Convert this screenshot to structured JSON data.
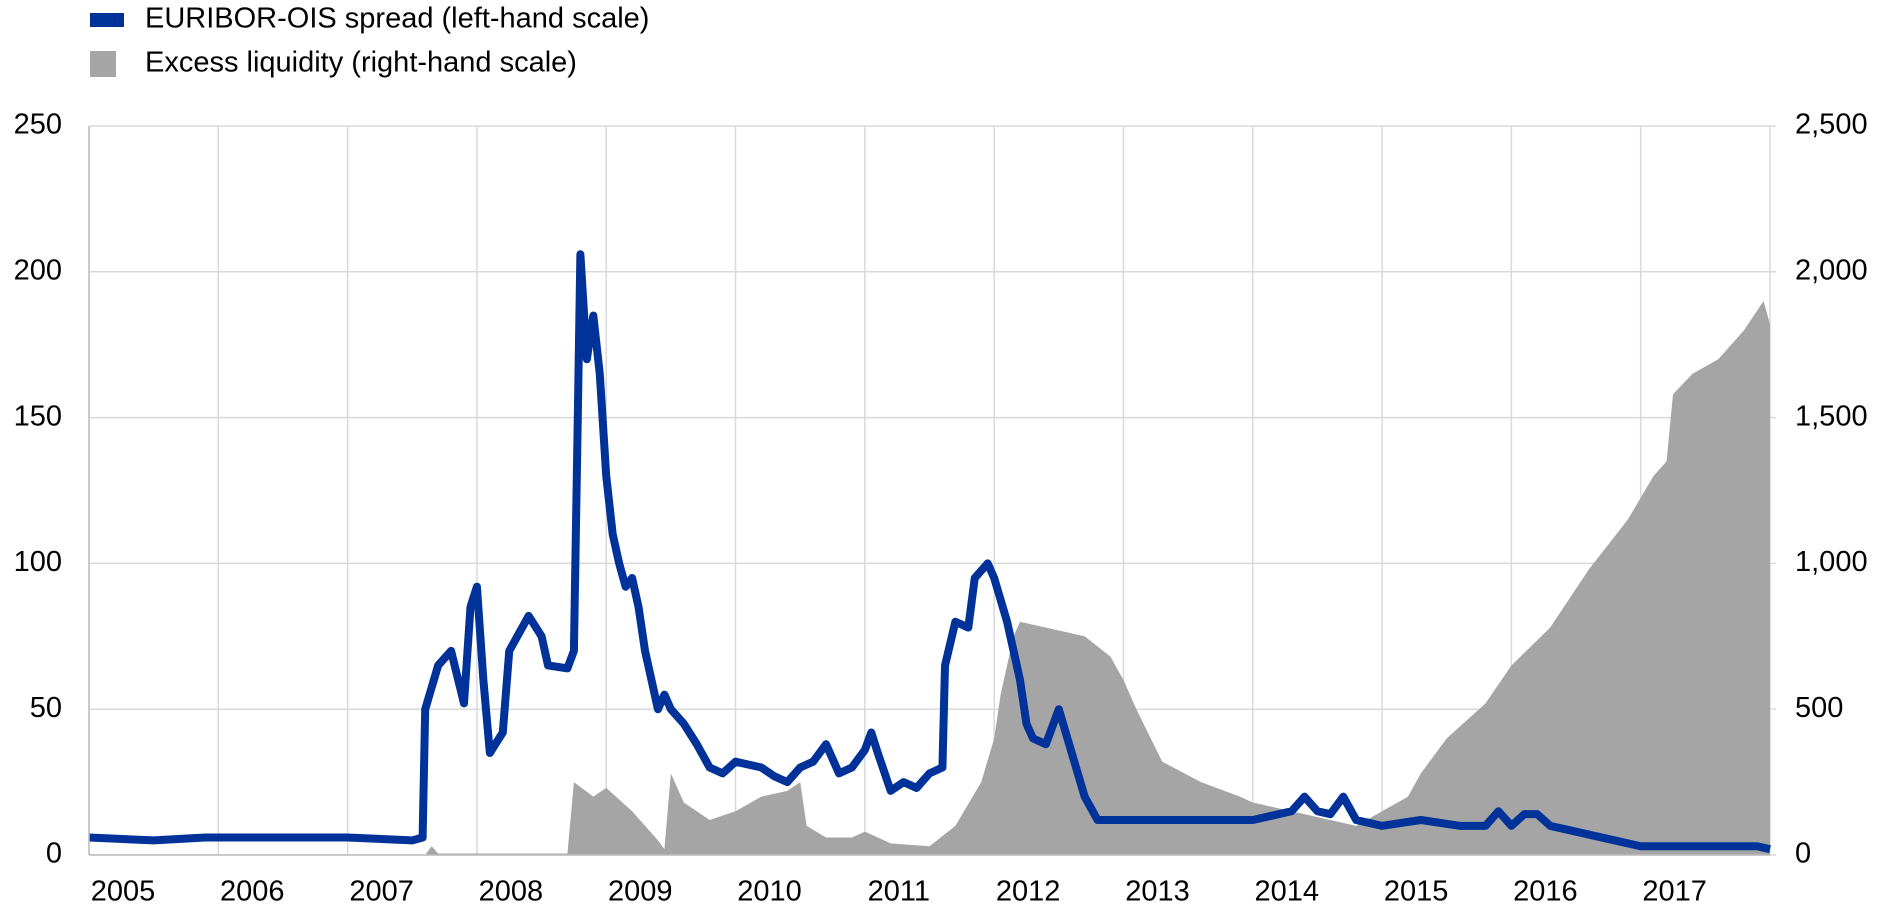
{
  "chart_data": {
    "type": "line-area",
    "xlim": [
      2005,
      2018
    ],
    "xticks": [
      2005,
      2006,
      2007,
      2008,
      2009,
      2010,
      2011,
      2012,
      2013,
      2014,
      2015,
      2016,
      2017
    ],
    "ylim": [
      0,
      250
    ],
    "yticks": [
      0,
      50,
      100,
      150,
      200,
      250
    ],
    "y2lim": [
      0,
      2500
    ],
    "y2ticks": [
      {
        "value": 0,
        "label": "0"
      },
      {
        "value": 500,
        "label": "500"
      },
      {
        "value": 1000,
        "label": "1,000"
      },
      {
        "value": 1500,
        "label": "1,500"
      },
      {
        "value": 2000,
        "label": "2,000"
      },
      {
        "value": 2500,
        "label": "2,500"
      }
    ],
    "grid": true,
    "legend": "top-left",
    "series": [
      {
        "name": "EURIBOR-OIS spread (left-hand scale)",
        "color": "#003299",
        "kind": "line",
        "x": [
          2005.0,
          2005.5,
          2005.9,
          2006.0,
          2006.5,
          2007.0,
          2007.5,
          2007.58,
          2007.6,
          2007.7,
          2007.8,
          2007.9,
          2007.95,
          2008.0,
          2008.05,
          2008.1,
          2008.2,
          2008.25,
          2008.35,
          2008.4,
          2008.5,
          2008.55,
          2008.7,
          2008.75,
          2008.78,
          2008.8,
          2008.85,
          2008.9,
          2008.95,
          2009.0,
          2009.05,
          2009.1,
          2009.15,
          2009.2,
          2009.25,
          2009.3,
          2009.35,
          2009.4,
          2009.45,
          2009.5,
          2009.6,
          2009.7,
          2009.8,
          2009.9,
          2010.0,
          2010.2,
          2010.3,
          2010.4,
          2010.5,
          2010.6,
          2010.7,
          2010.8,
          2010.9,
          2011.0,
          2011.05,
          2011.1,
          2011.2,
          2011.3,
          2011.4,
          2011.5,
          2011.6,
          2011.62,
          2011.7,
          2011.8,
          2011.85,
          2011.95,
          2012.0,
          2012.1,
          2012.2,
          2012.25,
          2012.3,
          2012.4,
          2012.5,
          2012.6,
          2012.7,
          2012.8,
          2013.0,
          2013.5,
          2014.0,
          2014.3,
          2014.4,
          2014.5,
          2014.6,
          2014.7,
          2014.8,
          2015.0,
          2015.3,
          2015.6,
          2015.8,
          2015.9,
          2016.0,
          2016.1,
          2016.2,
          2016.3,
          2016.5,
          2016.8,
          2017.0,
          2017.5,
          2017.9,
          2018.0
        ],
        "values": [
          6,
          5,
          6,
          6,
          6,
          6,
          5,
          6,
          50,
          65,
          70,
          52,
          85,
          92,
          60,
          35,
          42,
          70,
          78,
          82,
          75,
          65,
          64,
          70,
          150,
          206,
          170,
          185,
          165,
          130,
          110,
          100,
          92,
          95,
          85,
          70,
          60,
          50,
          55,
          50,
          45,
          38,
          30,
          28,
          32,
          30,
          27,
          25,
          30,
          32,
          38,
          28,
          30,
          36,
          42,
          35,
          22,
          25,
          23,
          28,
          30,
          65,
          80,
          78,
          95,
          100,
          95,
          80,
          60,
          45,
          40,
          38,
          50,
          35,
          20,
          12,
          12,
          12,
          12,
          15,
          20,
          15,
          14,
          20,
          12,
          10,
          12,
          10,
          10,
          15,
          10,
          14,
          14,
          10,
          8,
          5,
          3,
          3,
          3,
          2
        ]
      },
      {
        "name": "Excess liquidity (right-hand scale)",
        "color": "#a5a5a5",
        "kind": "area",
        "axis": "y2",
        "x": [
          2005.0,
          2007.6,
          2007.65,
          2007.7,
          2008.0,
          2008.7,
          2008.75,
          2008.9,
          2009.0,
          2009.2,
          2009.4,
          2009.45,
          2009.5,
          2009.6,
          2009.8,
          2010.0,
          2010.2,
          2010.4,
          2010.5,
          2010.55,
          2010.7,
          2010.9,
          2011.0,
          2011.2,
          2011.5,
          2011.7,
          2011.9,
          2012.0,
          2012.05,
          2012.15,
          2012.2,
          2012.5,
          2012.7,
          2012.9,
          2013.0,
          2013.1,
          2013.3,
          2013.6,
          2013.9,
          2014.0,
          2014.3,
          2014.6,
          2014.8,
          2015.0,
          2015.2,
          2015.3,
          2015.5,
          2015.8,
          2016.0,
          2016.3,
          2016.6,
          2016.9,
          2017.1,
          2017.2,
          2017.25,
          2017.4,
          2017.6,
          2017.8,
          2017.95,
          2018.0
        ],
        "values": [
          0,
          0,
          30,
          5,
          5,
          5,
          250,
          200,
          230,
          150,
          50,
          20,
          280,
          180,
          120,
          150,
          200,
          220,
          250,
          100,
          60,
          60,
          80,
          40,
          30,
          100,
          250,
          400,
          550,
          750,
          800,
          770,
          750,
          680,
          600,
          500,
          320,
          250,
          200,
          180,
          150,
          120,
          100,
          150,
          200,
          280,
          400,
          520,
          650,
          780,
          980,
          1150,
          1300,
          1350,
          1580,
          1650,
          1700,
          1800,
          1900,
          1820
        ]
      }
    ]
  }
}
